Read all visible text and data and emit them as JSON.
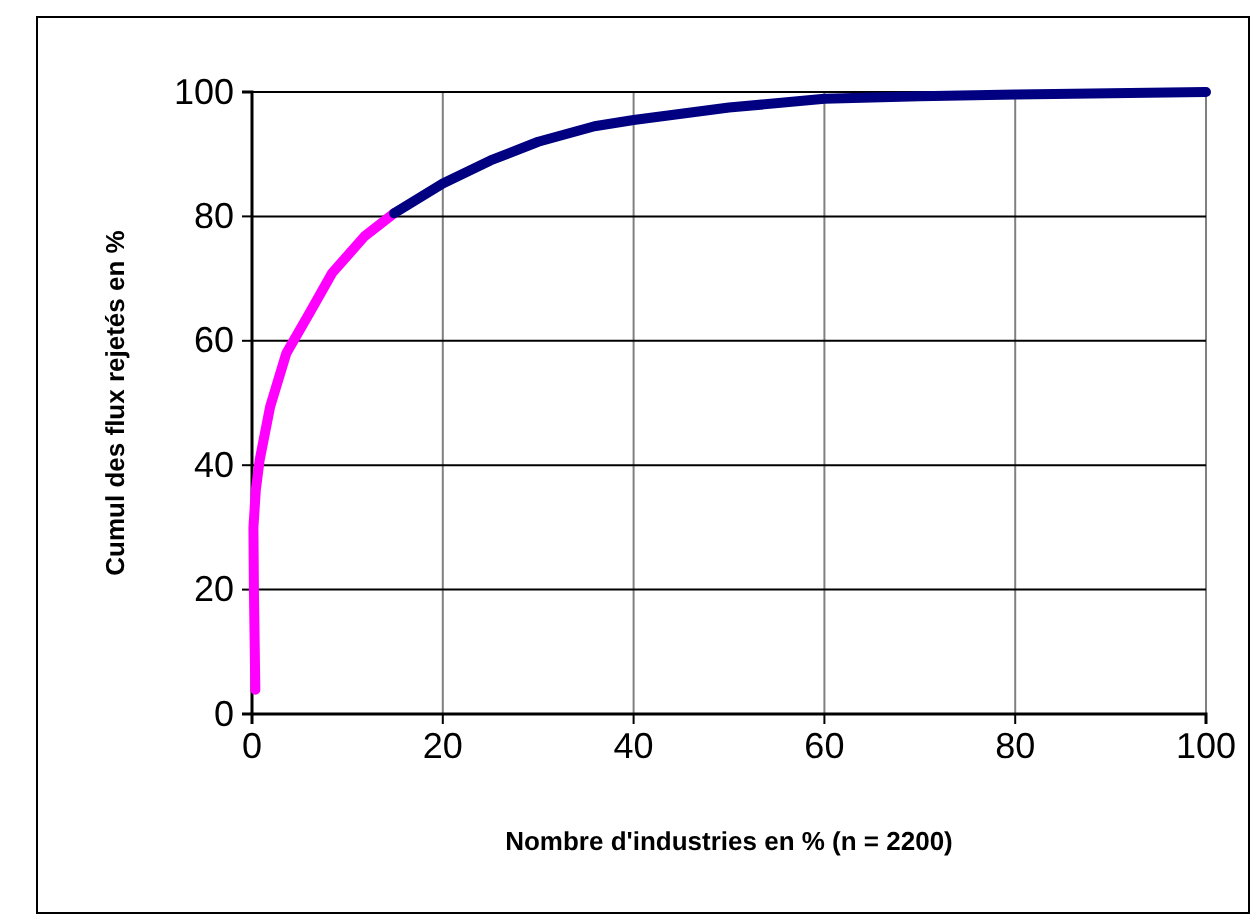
{
  "chart_data": {
    "type": "line",
    "xlabel": "Nombre d'industries en % (n = 2200)",
    "ylabel": "Cumul des flux rejetés en %",
    "xlim": [
      0,
      100
    ],
    "xticks": [
      0,
      20,
      40,
      60,
      80,
      100
    ],
    "ylim": [
      0,
      100
    ],
    "yticks": [
      0,
      20,
      40,
      60,
      80,
      100
    ],
    "grid": true,
    "marker": "none",
    "line_style": "solid",
    "series": [
      {
        "color": "#ff00ff",
        "x": [
          0.35,
          0.2,
          0.15,
          0.4,
          0.8,
          1.9,
          3.6,
          6,
          8.4,
          11.8,
          14.9
        ],
        "values": [
          3.9,
          20,
          30,
          36,
          40.8,
          49.4,
          58,
          64.4,
          70.9,
          76.8,
          80.5
        ]
      },
      {
        "color": "#000080",
        "x": [
          14.9,
          20,
          25,
          30,
          35.9,
          40,
          50,
          60,
          70,
          80,
          90,
          100
        ],
        "values": [
          80.5,
          85.3,
          89,
          92,
          94.5,
          95.5,
          97.5,
          98.9,
          99.3,
          99.6,
          99.8,
          100
        ]
      }
    ]
  }
}
